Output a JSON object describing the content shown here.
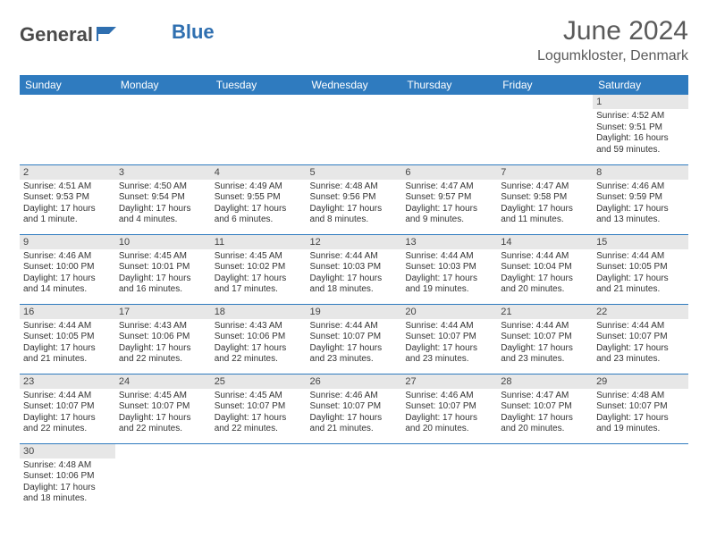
{
  "brand": {
    "part1": "General",
    "part2": "Blue"
  },
  "title": "June 2024",
  "location": "Logumkloster, Denmark",
  "style": {
    "header_bg": "#2f7bbf",
    "header_text": "#ffffff",
    "daynum_bg": "#e7e7e7",
    "border_color": "#2f7bbf",
    "title_color": "#5a5a5a",
    "body_font_size": 10,
    "title_font_size": 30
  },
  "day_headers": [
    "Sunday",
    "Monday",
    "Tuesday",
    "Wednesday",
    "Thursday",
    "Friday",
    "Saturday"
  ],
  "weeks": [
    [
      null,
      null,
      null,
      null,
      null,
      null,
      {
        "n": "1",
        "sunrise": "Sunrise: 4:52 AM",
        "sunset": "Sunset: 9:51 PM",
        "daylight": "Daylight: 16 hours and 59 minutes."
      }
    ],
    [
      {
        "n": "2",
        "sunrise": "Sunrise: 4:51 AM",
        "sunset": "Sunset: 9:53 PM",
        "daylight": "Daylight: 17 hours and 1 minute."
      },
      {
        "n": "3",
        "sunrise": "Sunrise: 4:50 AM",
        "sunset": "Sunset: 9:54 PM",
        "daylight": "Daylight: 17 hours and 4 minutes."
      },
      {
        "n": "4",
        "sunrise": "Sunrise: 4:49 AM",
        "sunset": "Sunset: 9:55 PM",
        "daylight": "Daylight: 17 hours and 6 minutes."
      },
      {
        "n": "5",
        "sunrise": "Sunrise: 4:48 AM",
        "sunset": "Sunset: 9:56 PM",
        "daylight": "Daylight: 17 hours and 8 minutes."
      },
      {
        "n": "6",
        "sunrise": "Sunrise: 4:47 AM",
        "sunset": "Sunset: 9:57 PM",
        "daylight": "Daylight: 17 hours and 9 minutes."
      },
      {
        "n": "7",
        "sunrise": "Sunrise: 4:47 AM",
        "sunset": "Sunset: 9:58 PM",
        "daylight": "Daylight: 17 hours and 11 minutes."
      },
      {
        "n": "8",
        "sunrise": "Sunrise: 4:46 AM",
        "sunset": "Sunset: 9:59 PM",
        "daylight": "Daylight: 17 hours and 13 minutes."
      }
    ],
    [
      {
        "n": "9",
        "sunrise": "Sunrise: 4:46 AM",
        "sunset": "Sunset: 10:00 PM",
        "daylight": "Daylight: 17 hours and 14 minutes."
      },
      {
        "n": "10",
        "sunrise": "Sunrise: 4:45 AM",
        "sunset": "Sunset: 10:01 PM",
        "daylight": "Daylight: 17 hours and 16 minutes."
      },
      {
        "n": "11",
        "sunrise": "Sunrise: 4:45 AM",
        "sunset": "Sunset: 10:02 PM",
        "daylight": "Daylight: 17 hours and 17 minutes."
      },
      {
        "n": "12",
        "sunrise": "Sunrise: 4:44 AM",
        "sunset": "Sunset: 10:03 PM",
        "daylight": "Daylight: 17 hours and 18 minutes."
      },
      {
        "n": "13",
        "sunrise": "Sunrise: 4:44 AM",
        "sunset": "Sunset: 10:03 PM",
        "daylight": "Daylight: 17 hours and 19 minutes."
      },
      {
        "n": "14",
        "sunrise": "Sunrise: 4:44 AM",
        "sunset": "Sunset: 10:04 PM",
        "daylight": "Daylight: 17 hours and 20 minutes."
      },
      {
        "n": "15",
        "sunrise": "Sunrise: 4:44 AM",
        "sunset": "Sunset: 10:05 PM",
        "daylight": "Daylight: 17 hours and 21 minutes."
      }
    ],
    [
      {
        "n": "16",
        "sunrise": "Sunrise: 4:44 AM",
        "sunset": "Sunset: 10:05 PM",
        "daylight": "Daylight: 17 hours and 21 minutes."
      },
      {
        "n": "17",
        "sunrise": "Sunrise: 4:43 AM",
        "sunset": "Sunset: 10:06 PM",
        "daylight": "Daylight: 17 hours and 22 minutes."
      },
      {
        "n": "18",
        "sunrise": "Sunrise: 4:43 AM",
        "sunset": "Sunset: 10:06 PM",
        "daylight": "Daylight: 17 hours and 22 minutes."
      },
      {
        "n": "19",
        "sunrise": "Sunrise: 4:44 AM",
        "sunset": "Sunset: 10:07 PM",
        "daylight": "Daylight: 17 hours and 23 minutes."
      },
      {
        "n": "20",
        "sunrise": "Sunrise: 4:44 AM",
        "sunset": "Sunset: 10:07 PM",
        "daylight": "Daylight: 17 hours and 23 minutes."
      },
      {
        "n": "21",
        "sunrise": "Sunrise: 4:44 AM",
        "sunset": "Sunset: 10:07 PM",
        "daylight": "Daylight: 17 hours and 23 minutes."
      },
      {
        "n": "22",
        "sunrise": "Sunrise: 4:44 AM",
        "sunset": "Sunset: 10:07 PM",
        "daylight": "Daylight: 17 hours and 23 minutes."
      }
    ],
    [
      {
        "n": "23",
        "sunrise": "Sunrise: 4:44 AM",
        "sunset": "Sunset: 10:07 PM",
        "daylight": "Daylight: 17 hours and 22 minutes."
      },
      {
        "n": "24",
        "sunrise": "Sunrise: 4:45 AM",
        "sunset": "Sunset: 10:07 PM",
        "daylight": "Daylight: 17 hours and 22 minutes."
      },
      {
        "n": "25",
        "sunrise": "Sunrise: 4:45 AM",
        "sunset": "Sunset: 10:07 PM",
        "daylight": "Daylight: 17 hours and 22 minutes."
      },
      {
        "n": "26",
        "sunrise": "Sunrise: 4:46 AM",
        "sunset": "Sunset: 10:07 PM",
        "daylight": "Daylight: 17 hours and 21 minutes."
      },
      {
        "n": "27",
        "sunrise": "Sunrise: 4:46 AM",
        "sunset": "Sunset: 10:07 PM",
        "daylight": "Daylight: 17 hours and 20 minutes."
      },
      {
        "n": "28",
        "sunrise": "Sunrise: 4:47 AM",
        "sunset": "Sunset: 10:07 PM",
        "daylight": "Daylight: 17 hours and 20 minutes."
      },
      {
        "n": "29",
        "sunrise": "Sunrise: 4:48 AM",
        "sunset": "Sunset: 10:07 PM",
        "daylight": "Daylight: 17 hours and 19 minutes."
      }
    ],
    [
      {
        "n": "30",
        "sunrise": "Sunrise: 4:48 AM",
        "sunset": "Sunset: 10:06 PM",
        "daylight": "Daylight: 17 hours and 18 minutes."
      },
      null,
      null,
      null,
      null,
      null,
      null
    ]
  ]
}
